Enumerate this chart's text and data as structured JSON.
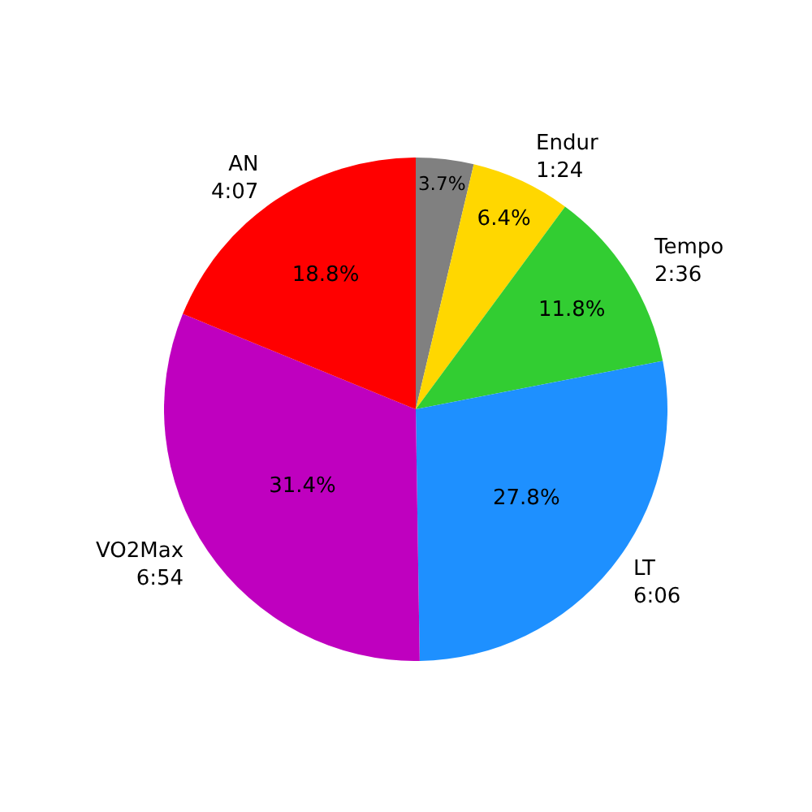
{
  "chart_data": {
    "type": "pie",
    "categories": [
      null,
      "Endur\n1:24",
      "Tempo\n2:36",
      "LT\n6:06",
      "VO2Max\n6:54",
      "AN\n4:07"
    ],
    "values": [
      3.7,
      6.4,
      11.8,
      27.8,
      31.4,
      18.8
    ],
    "value_labels": [
      "3.7%",
      "6.4%",
      "11.8%",
      "27.8%",
      "31.4%",
      "18.8%"
    ],
    "colors": [
      "#808080",
      "#ffd700",
      "#32cd32",
      "#1e90ff",
      "#bf00bf",
      "#ff0000"
    ]
  }
}
